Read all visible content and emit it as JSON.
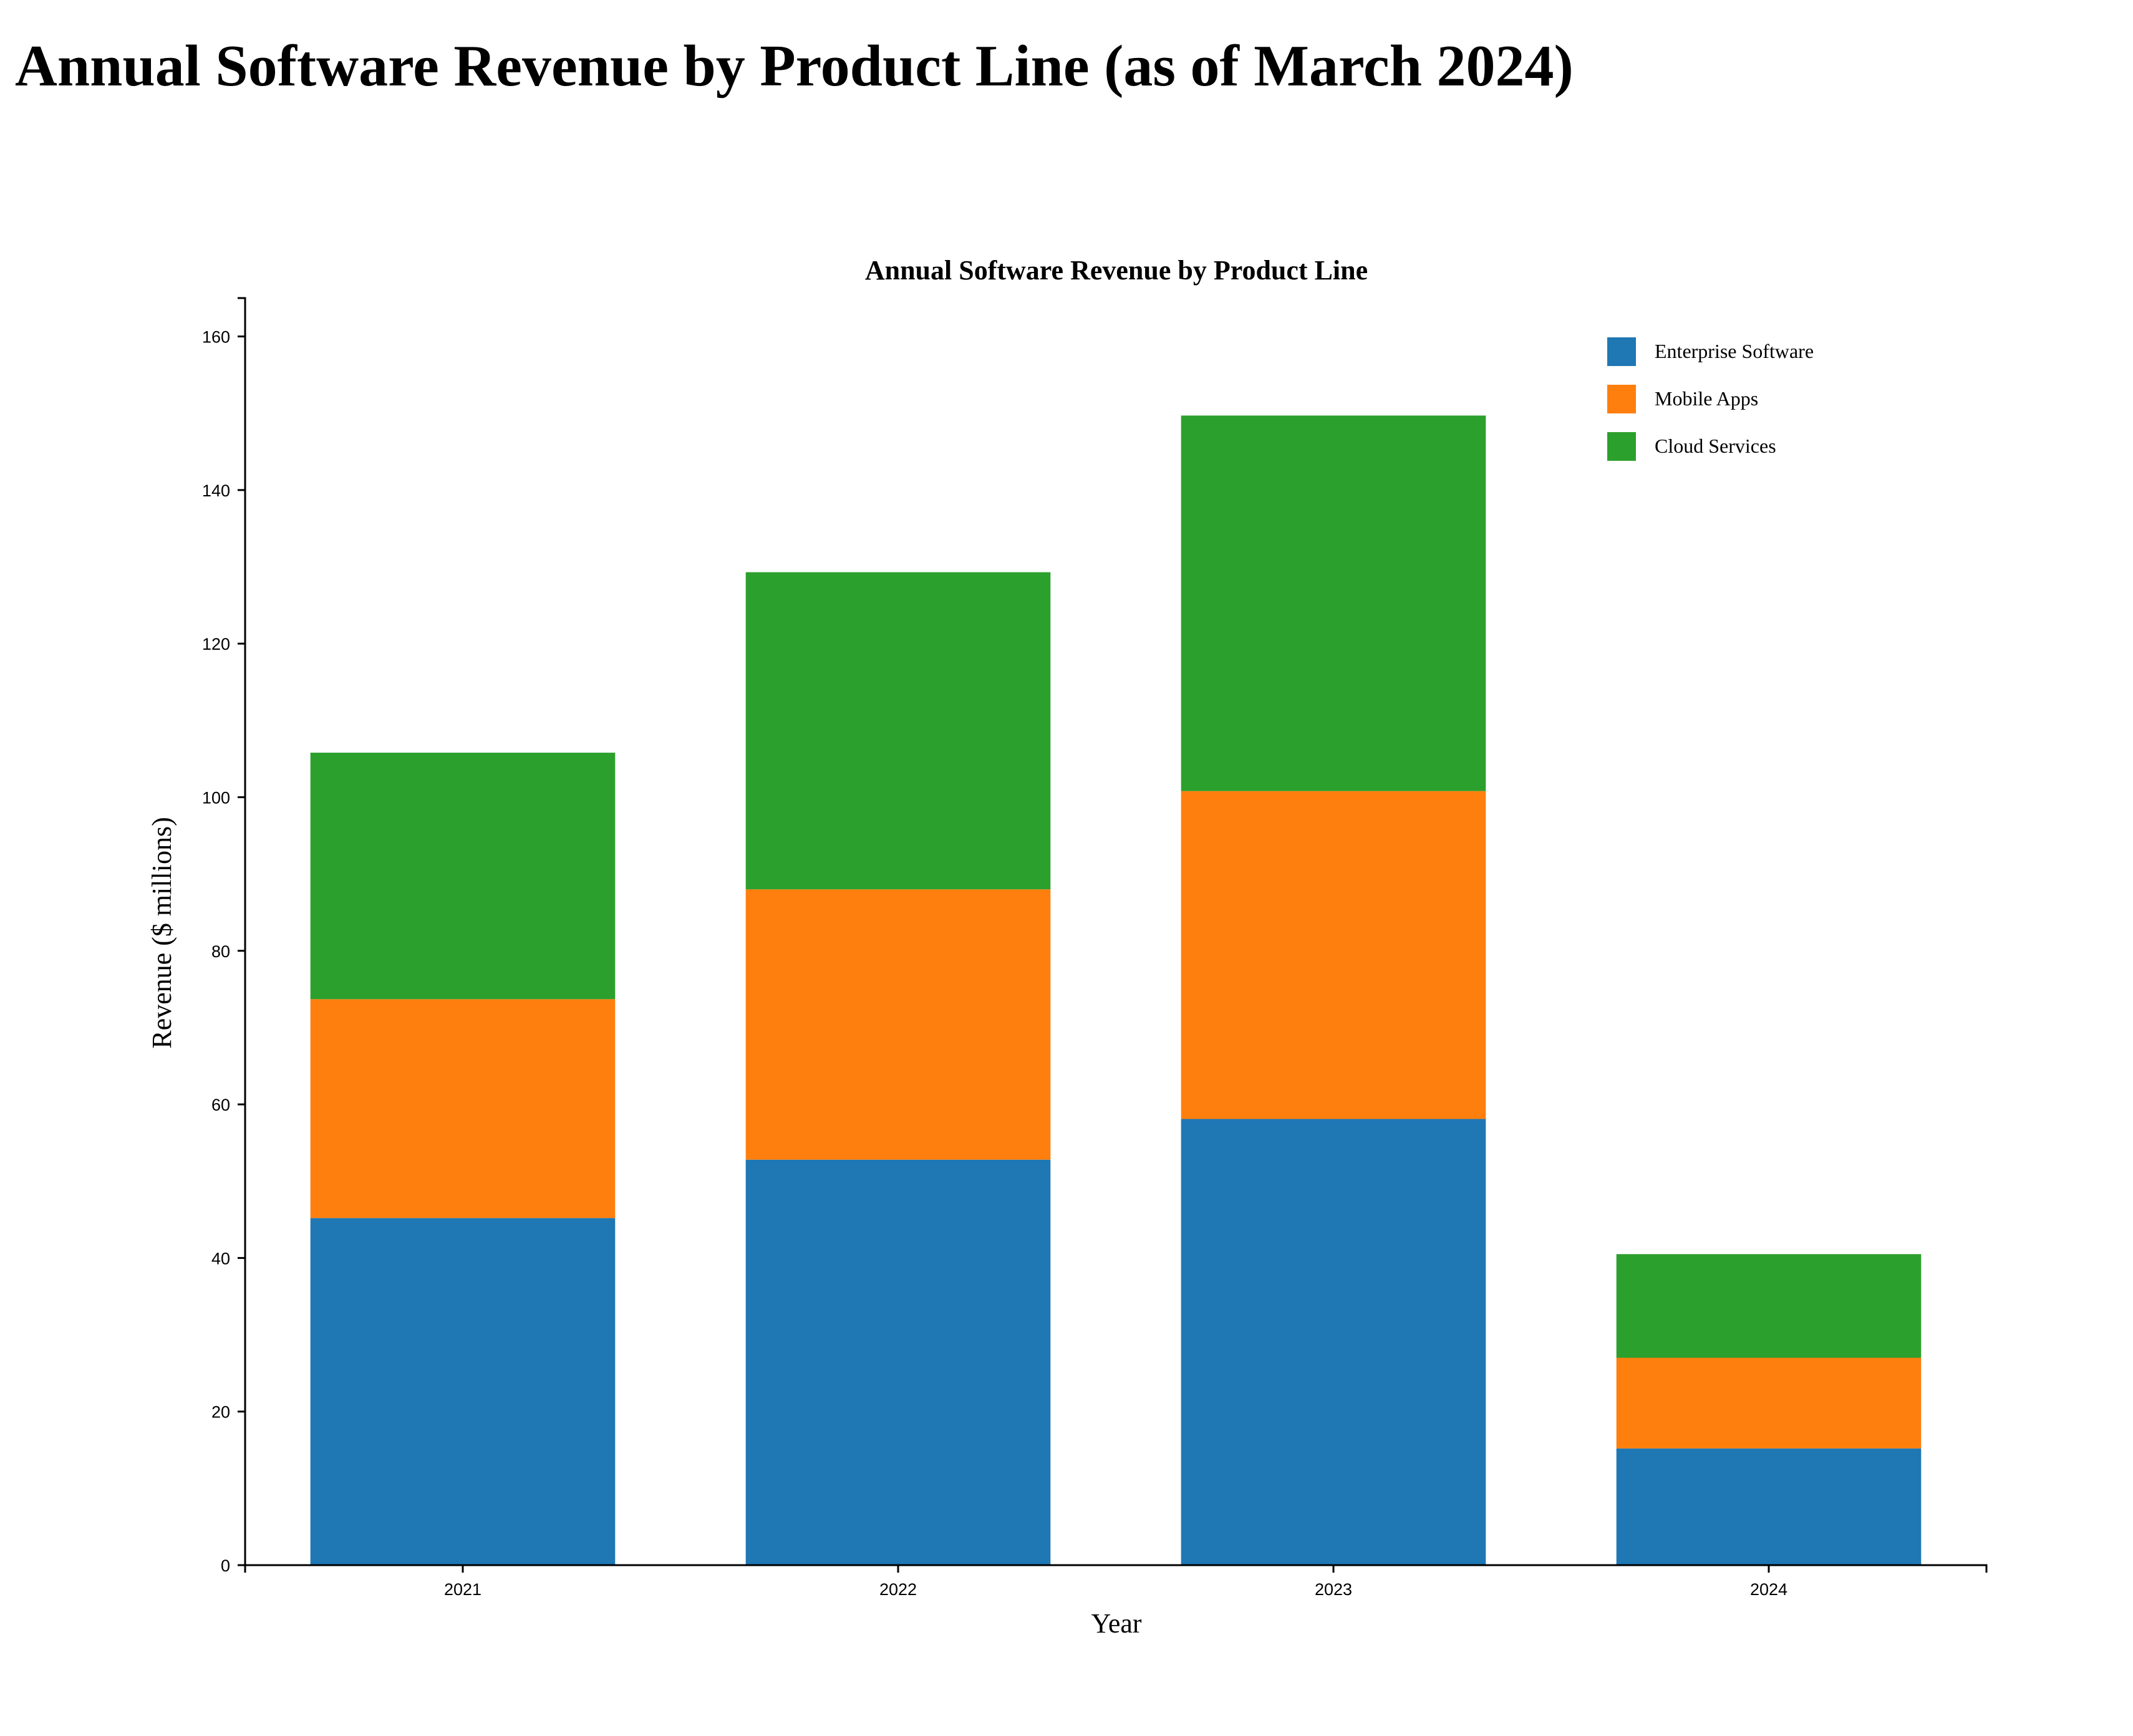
{
  "page": {
    "title": "Annual Software Revenue by Product Line (as of March 2024)"
  },
  "chart_data": {
    "type": "bar",
    "stacked": true,
    "title": "Annual Software Revenue by Product Line",
    "xlabel": "Year",
    "ylabel": "Revenue ($ millions)",
    "categories": [
      "2021",
      "2022",
      "2023",
      "2024"
    ],
    "series": [
      {
        "name": "Enterprise Software",
        "color": "#1f77b4",
        "values": [
          45.2,
          52.8,
          58.1,
          15.2
        ]
      },
      {
        "name": "Mobile Apps",
        "color": "#ff7f0e",
        "values": [
          28.5,
          35.2,
          42.7,
          11.8
        ]
      },
      {
        "name": "Cloud Services",
        "color": "#2ca02c",
        "values": [
          32.1,
          41.3,
          48.9,
          13.5
        ]
      }
    ],
    "ylim": [
      0,
      165
    ],
    "yticks": [
      0,
      20,
      40,
      60,
      80,
      100,
      120,
      140,
      160
    ],
    "legend_position": "top-right",
    "grid": false
  }
}
